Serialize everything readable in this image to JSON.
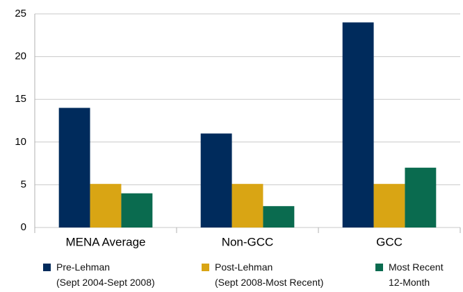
{
  "chart_data": {
    "type": "bar",
    "categories": [
      "MENA Average",
      "Non-GCC",
      "GCC"
    ],
    "series": [
      {
        "name": "Pre-Lehman\n(Sept 2004-Sept 2008)",
        "color": "#002b5c",
        "values": [
          14,
          11,
          24
        ]
      },
      {
        "name": "Post-Lehman\n(Sept 2008-Most Recent)",
        "color": "#d9a514",
        "values": [
          5.1,
          5.1,
          5.1
        ]
      },
      {
        "name": "Most Recent\n12-Month",
        "color": "#0a6b4f",
        "values": [
          4,
          2.5,
          7
        ]
      }
    ],
    "ylim": [
      0,
      25
    ],
    "yticks": [
      0,
      5,
      10,
      15,
      20,
      25
    ],
    "grid": true,
    "legend": "bottom"
  }
}
